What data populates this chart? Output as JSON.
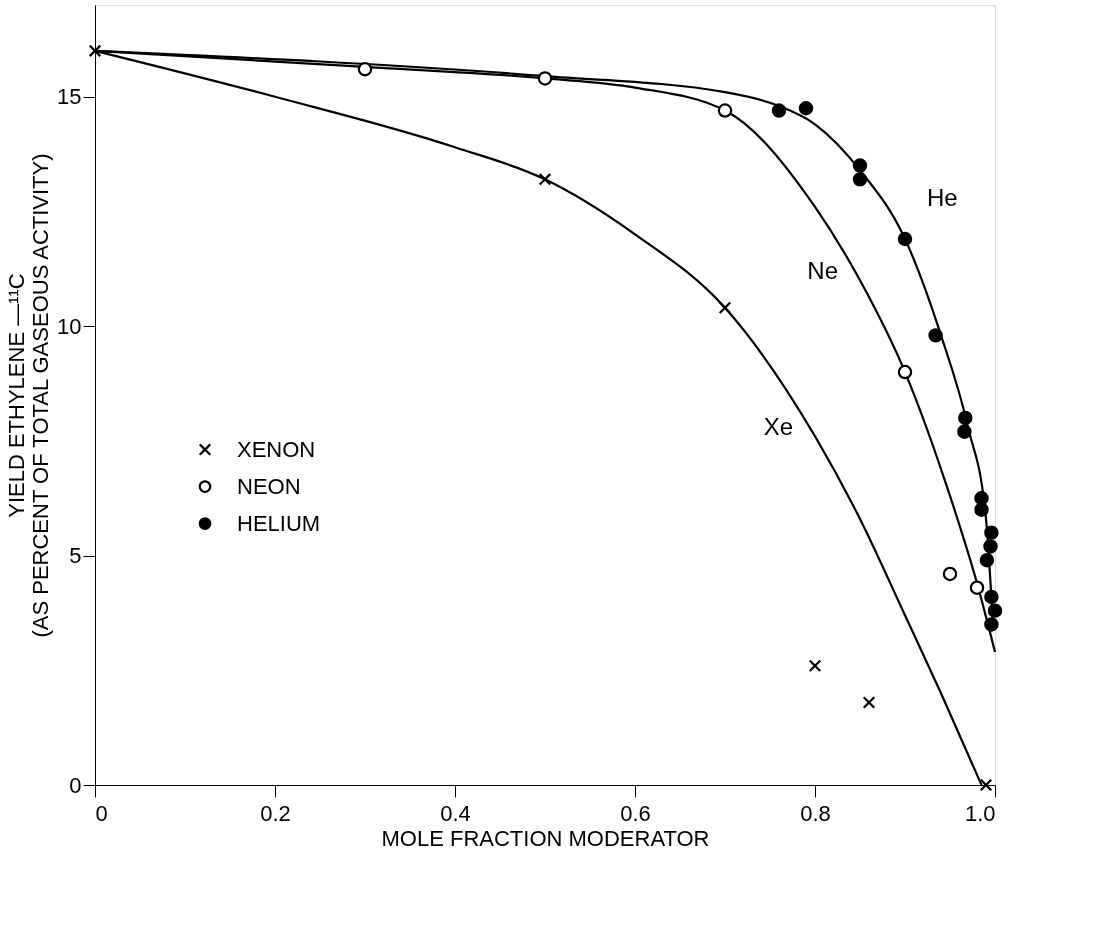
{
  "chart_data": {
    "type": "scatter",
    "xlabel": "MOLE FRACTION MODERATOR",
    "ylabel": "YIELD ETHYLENE —¹¹C\n(AS PERCENT OF TOTAL GASEOUS ACTIVITY)",
    "xlim": [
      0,
      1
    ],
    "ylim": [
      0,
      17
    ],
    "xticks": [
      0,
      0.2,
      0.4,
      0.6,
      0.8,
      {
        "value": 1,
        "label": "1.0"
      }
    ],
    "yticks": [
      0,
      5,
      10,
      15
    ],
    "grid": false,
    "legend": "bottom left",
    "series": [
      {
        "type": "line",
        "name": "Xe",
        "color": "#000000",
        "x": [
          0,
          0.2,
          0.4,
          0.5,
          0.6,
          0.7,
          0.8,
          0.85,
          0.9,
          0.94,
          0.985
        ],
        "values": [
          16,
          15.0,
          13.9,
          13.2,
          12.0,
          10.4,
          7.6,
          5.8,
          3.7,
          2.0,
          0
        ]
      },
      {
        "type": "line",
        "name": "Ne",
        "color": "#000000",
        "x": [
          0,
          0.3,
          0.5,
          0.6,
          0.7,
          0.8,
          0.85,
          0.9,
          0.95,
          0.98,
          1.0
        ],
        "values": [
          16,
          15.65,
          15.4,
          15.2,
          14.7,
          12.6,
          11.0,
          9.0,
          6.3,
          4.4,
          2.9
        ]
      },
      {
        "type": "line",
        "name": "He",
        "color": "#000000",
        "x": [
          0,
          0.5,
          0.7,
          0.76,
          0.8,
          0.85,
          0.9,
          0.94,
          0.97,
          0.99,
          0.998
        ],
        "values": [
          16,
          15.45,
          15.1,
          14.8,
          14.4,
          13.4,
          11.9,
          9.8,
          7.8,
          5.8,
          3.4
        ]
      },
      {
        "name": "XENON",
        "color": "#000000",
        "marker": "cross",
        "x": [
          0,
          0.5,
          0.7,
          0.8,
          0.86,
          0.99
        ],
        "values": [
          16,
          13.2,
          10.4,
          2.6,
          1.8,
          0
        ]
      },
      {
        "name": "NEON",
        "color": "#ffffff",
        "marker": "circle",
        "x": [
          0.3,
          0.5,
          0.7,
          0.9,
          0.95,
          0.98
        ],
        "values": [
          15.6,
          15.4,
          14.7,
          9.0,
          4.6,
          4.3
        ]
      },
      {
        "name": "HELIUM",
        "color": "#000000",
        "marker": "circle",
        "x": [
          0.76,
          0.79,
          0.85,
          0.85,
          0.9,
          0.934,
          0.967,
          0.966,
          0.985,
          0.985,
          0.996,
          0.995,
          0.991,
          0.996,
          1.0,
          0.996
        ],
        "values": [
          14.7,
          14.75,
          13.5,
          13.2,
          11.9,
          9.8,
          8.0,
          7.7,
          6.25,
          6.0,
          5.5,
          5.2,
          4.9,
          4.1,
          3.8,
          3.5
        ]
      }
    ]
  }
}
